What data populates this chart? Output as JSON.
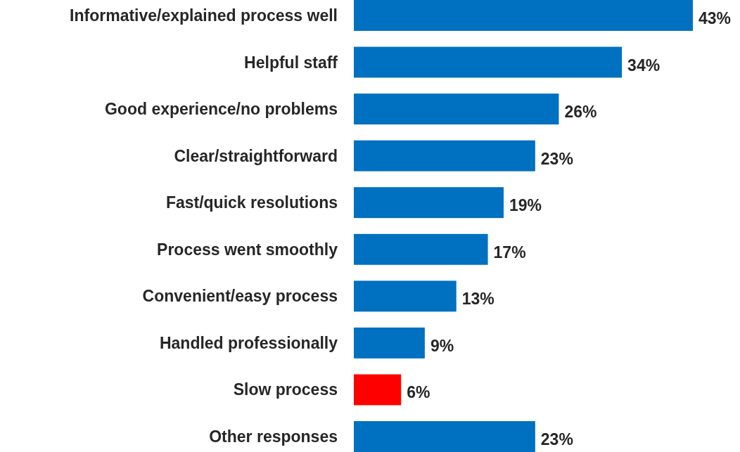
{
  "chart_data": {
    "type": "bar",
    "orientation": "horizontal",
    "categories": [
      "Informative/explained process well",
      "Helpful staff",
      "Good experience/no problems",
      "Clear/straightforward",
      "Fast/quick resolutions",
      "Process went smoothly",
      "Convenient/easy process",
      "Handled professionally",
      "Slow process",
      "Other responses"
    ],
    "values": [
      43,
      34,
      26,
      23,
      19,
      17,
      13,
      9,
      6,
      23
    ],
    "colors": [
      "#0070c0",
      "#0070c0",
      "#0070c0",
      "#0070c0",
      "#0070c0",
      "#0070c0",
      "#0070c0",
      "#0070c0",
      "#ff0000",
      "#0070c0"
    ],
    "value_labels": [
      "43%",
      "34%",
      "26%",
      "23%",
      "19%",
      "17%",
      "13%",
      "9%",
      "6%",
      "23%"
    ]
  }
}
